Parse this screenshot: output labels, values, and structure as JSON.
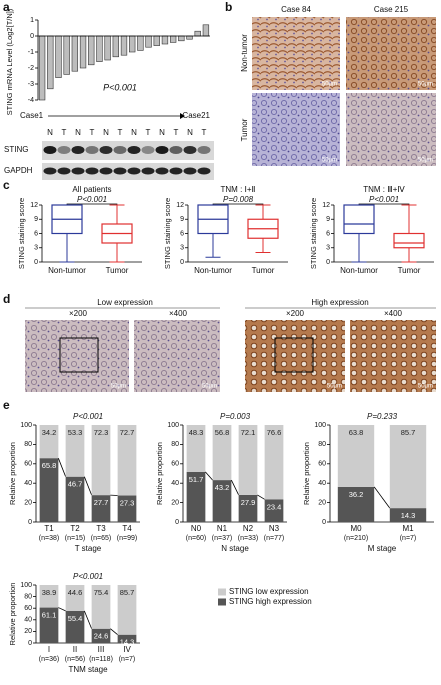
{
  "panel_labels": [
    "a",
    "b",
    "c",
    "d",
    "e"
  ],
  "blot": {
    "lanes": [
      "N",
      "T",
      "N",
      "T",
      "N",
      "T",
      "N",
      "T",
      "N",
      "T",
      "N",
      "T"
    ],
    "rows": [
      "STING",
      "GAPDH"
    ]
  },
  "histology_b": {
    "columns": [
      "Case 84",
      "Case 215"
    ],
    "rows": [
      "Non-tumor",
      "Tumor"
    ],
    "scale_bar": "50μm"
  },
  "histology_d": {
    "groups": [
      "Low expression",
      "High expression"
    ],
    "magnifications": [
      "×200",
      "×400"
    ],
    "scale_bar": "50μm"
  },
  "chart_data": [
    {
      "type": "bar",
      "y_label": "STING mRNA Level (Log2[T/N])",
      "p_value": "P<0.001",
      "start_label": "Case1",
      "end_label": "Case21",
      "values": [
        -4.0,
        -3.3,
        -2.6,
        -2.4,
        -2.2,
        -2.0,
        -1.8,
        -1.6,
        -1.5,
        -1.3,
        -1.2,
        -1.0,
        -0.9,
        -0.7,
        -0.6,
        -0.5,
        -0.4,
        -0.3,
        -0.2,
        0.3,
        0.7
      ],
      "color": "#bdbdbd",
      "ylim": [
        -4,
        1
      ],
      "yticks": [
        -4,
        -3,
        -2,
        -1,
        0,
        1
      ]
    },
    {
      "type": "box",
      "title": "All patients",
      "p_value": "P<0.001",
      "y_label": "STING staining score",
      "categories": [
        "Non-tumor",
        "Tumor"
      ],
      "colors": [
        "#2b3a9a",
        "#e03030"
      ],
      "boxes": [
        {
          "min": 0,
          "q1": 6,
          "median": 9,
          "q3": 12,
          "max": 12
        },
        {
          "min": 0,
          "q1": 4,
          "median": 6,
          "q3": 8,
          "max": 12
        }
      ],
      "ylim": [
        0,
        12
      ],
      "yticks": [
        0,
        3,
        6,
        9,
        12
      ]
    },
    {
      "type": "box",
      "title": "TNM : Ⅰ+Ⅱ",
      "p_value": "P=0.008",
      "y_label": "STING staining score",
      "categories": [
        "Non-tumor",
        "Tumor"
      ],
      "colors": [
        "#2b3a9a",
        "#e03030"
      ],
      "boxes": [
        {
          "min": 1,
          "q1": 6,
          "median": 9,
          "q3": 12,
          "max": 12
        },
        {
          "min": 2,
          "q1": 5,
          "median": 7,
          "q3": 9,
          "max": 12
        }
      ],
      "ylim": [
        0,
        12
      ],
      "yticks": [
        0,
        3,
        6,
        9,
        12
      ]
    },
    {
      "type": "box",
      "title": "TNM : Ⅲ+Ⅳ",
      "p_value": "P<0.001",
      "y_label": "STING staining score",
      "categories": [
        "Non-tumor",
        "Tumor"
      ],
      "colors": [
        "#2b3a9a",
        "#e03030"
      ],
      "boxes": [
        {
          "min": 0,
          "q1": 6,
          "median": 8,
          "q3": 12,
          "max": 12
        },
        {
          "min": 0,
          "q1": 3,
          "median": 4,
          "q3": 6,
          "max": 12
        }
      ],
      "ylim": [
        0,
        12
      ],
      "yticks": [
        0,
        3,
        6,
        9,
        12
      ]
    },
    {
      "type": "stacked",
      "p_value": "P<0.001",
      "y_label": "Relative proportion",
      "x_label": "T stage",
      "categories": [
        "T1",
        "T2",
        "T3",
        "T4"
      ],
      "n_labels": [
        "(n=38)",
        "(n=15)",
        "(n=65)",
        "(n=99)"
      ],
      "series": [
        {
          "color": "#555555",
          "values": [
            65.8,
            46.7,
            27.7,
            27.3
          ]
        },
        {
          "color": "#cccccc",
          "values": [
            34.2,
            53.3,
            72.3,
            72.7
          ]
        }
      ],
      "ylim": [
        0,
        100
      ],
      "yticks": [
        0,
        20,
        40,
        60,
        80,
        100
      ]
    },
    {
      "type": "stacked",
      "p_value": "P=0.003",
      "y_label": "Relative proportion",
      "x_label": "N stage",
      "categories": [
        "N0",
        "N1",
        "N2",
        "N3"
      ],
      "n_labels": [
        "(n=60)",
        "(n=37)",
        "(n=33)",
        "(n=77)"
      ],
      "series": [
        {
          "color": "#555555",
          "values": [
            51.7,
            43.2,
            27.9,
            23.4
          ]
        },
        {
          "color": "#cccccc",
          "values": [
            48.3,
            56.8,
            72.1,
            76.6
          ]
        }
      ],
      "ylim": [
        0,
        100
      ],
      "yticks": [
        0,
        20,
        40,
        60,
        80,
        100
      ]
    },
    {
      "type": "stacked",
      "p_value": "P=0.233",
      "y_label": "Relative proportion",
      "x_label": "M stage",
      "categories": [
        "M0",
        "M1"
      ],
      "n_labels": [
        "(n=210)",
        "(n=7)"
      ],
      "series": [
        {
          "color": "#555555",
          "values": [
            36.2,
            14.3
          ]
        },
        {
          "color": "#cccccc",
          "values": [
            63.8,
            85.7
          ]
        }
      ],
      "ylim": [
        0,
        100
      ],
      "yticks": [
        0,
        20,
        40,
        60,
        80,
        100
      ]
    },
    {
      "type": "stacked",
      "p_value": "P<0.001",
      "y_label": "Relative proportion",
      "x_label": "TNM stage",
      "categories": [
        "I",
        "II",
        "III",
        "IV"
      ],
      "n_labels": [
        "(n=36)",
        "(n=56)",
        "(n=118)",
        "(n=7)"
      ],
      "series": [
        {
          "name": "STING high expression",
          "color": "#555555",
          "values": [
            61.1,
            55.4,
            24.6,
            14.3
          ]
        },
        {
          "name": "STING low expression",
          "color": "#cccccc",
          "values": [
            38.9,
            44.6,
            75.4,
            85.7
          ]
        }
      ],
      "ylim": [
        0,
        100
      ],
      "yticks": [
        0,
        20,
        40,
        60,
        80,
        100
      ],
      "legend": "right"
    }
  ]
}
